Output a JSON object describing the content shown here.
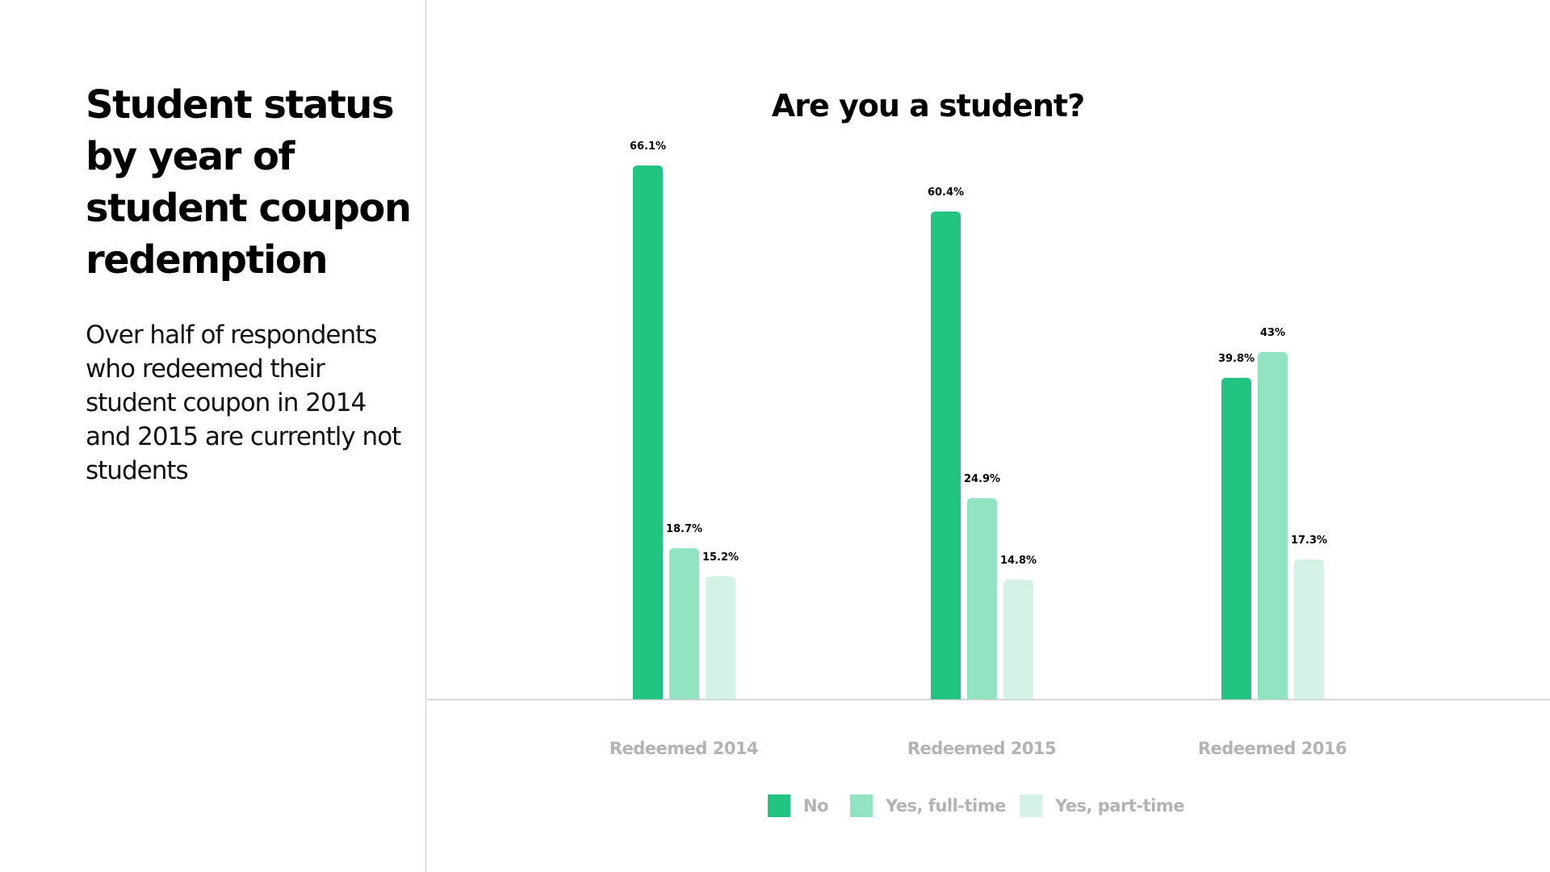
{
  "left": {
    "title": "Student status by year of student coupon redemption",
    "description": "Over half of respondents who redeemed their student coupon in 2014 and 2015 are currently not students"
  },
  "chart_data": {
    "type": "bar",
    "title": "Are you a student?",
    "categories": [
      "Redeemed 2014",
      "Redeemed 2015",
      "Redeemed 2016"
    ],
    "series": [
      {
        "name": "No",
        "color": "#22c482",
        "values": [
          66.1,
          60.4,
          39.8
        ],
        "labels": [
          "66.1%",
          "60.4%",
          "39.8%"
        ]
      },
      {
        "name": "Yes, full-time",
        "color": "#92e3c2",
        "values": [
          18.7,
          24.9,
          43
        ],
        "labels": [
          "18.7%",
          "24.9%",
          "43%"
        ]
      },
      {
        "name": "Yes, part-time",
        "color": "#d4f3e6",
        "values": [
          15.2,
          14.8,
          17.3
        ],
        "labels": [
          "15.2%",
          "14.8%",
          "17.3%"
        ]
      }
    ],
    "ylim": [
      0,
      66.1
    ],
    "grid": false,
    "legend_position": "bottom-center",
    "xlabel": "",
    "ylabel": ""
  },
  "colors": {
    "axis": "#c8c8c8",
    "category_label": "#b3b3b3",
    "value_label": "#000000"
  }
}
